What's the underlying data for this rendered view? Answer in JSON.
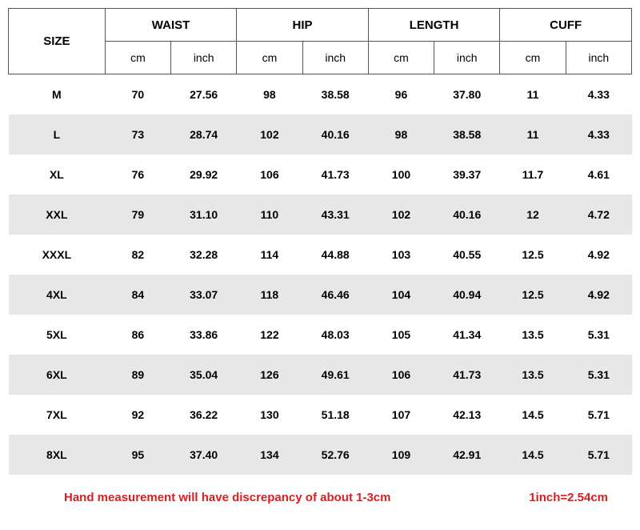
{
  "columns": {
    "size": "SIZE",
    "groups": [
      {
        "label": "WAIST",
        "subs": [
          "cm",
          "inch"
        ]
      },
      {
        "label": "HIP",
        "subs": [
          "cm",
          "inch"
        ]
      },
      {
        "label": "LENGTH",
        "subs": [
          "cm",
          "inch"
        ]
      },
      {
        "label": "CUFF",
        "subs": [
          "cm",
          "inch"
        ]
      }
    ]
  },
  "rows": [
    {
      "size": "M",
      "cells": [
        "70",
        "27.56",
        "98",
        "38.58",
        "96",
        "37.80",
        "11",
        "4.33"
      ]
    },
    {
      "size": "L",
      "cells": [
        "73",
        "28.74",
        "102",
        "40.16",
        "98",
        "38.58",
        "11",
        "4.33"
      ]
    },
    {
      "size": "XL",
      "cells": [
        "76",
        "29.92",
        "106",
        "41.73",
        "100",
        "39.37",
        "11.7",
        "4.61"
      ]
    },
    {
      "size": "XXL",
      "cells": [
        "79",
        "31.10",
        "110",
        "43.31",
        "102",
        "40.16",
        "12",
        "4.72"
      ]
    },
    {
      "size": "XXXL",
      "cells": [
        "82",
        "32.28",
        "114",
        "44.88",
        "103",
        "40.55",
        "12.5",
        "4.92"
      ]
    },
    {
      "size": "4XL",
      "cells": [
        "84",
        "33.07",
        "118",
        "46.46",
        "104",
        "40.94",
        "12.5",
        "4.92"
      ]
    },
    {
      "size": "5XL",
      "cells": [
        "86",
        "33.86",
        "122",
        "48.03",
        "105",
        "41.34",
        "13.5",
        "5.31"
      ]
    },
    {
      "size": "6XL",
      "cells": [
        "89",
        "35.04",
        "126",
        "49.61",
        "106",
        "41.73",
        "13.5",
        "5.31"
      ]
    },
    {
      "size": "7XL",
      "cells": [
        "92",
        "36.22",
        "130",
        "51.18",
        "107",
        "42.13",
        "14.5",
        "5.71"
      ]
    },
    {
      "size": "8XL",
      "cells": [
        "95",
        "37.40",
        "134",
        "52.76",
        "109",
        "42.91",
        "14.5",
        "5.71"
      ]
    }
  ],
  "footer": {
    "note": "Hand measurement will have discrepancy of about 1-3cm",
    "conv": "1inch=2.54cm"
  },
  "style": {
    "row_even_bg": "#e7e7e7",
    "row_odd_bg": "#ffffff",
    "footer_color": "#d91e1e",
    "border_color": "#555555",
    "col_widths_pct": [
      15.5,
      10.56,
      10.56,
      10.56,
      10.56,
      10.56,
      10.56,
      10.56,
      10.56
    ]
  }
}
